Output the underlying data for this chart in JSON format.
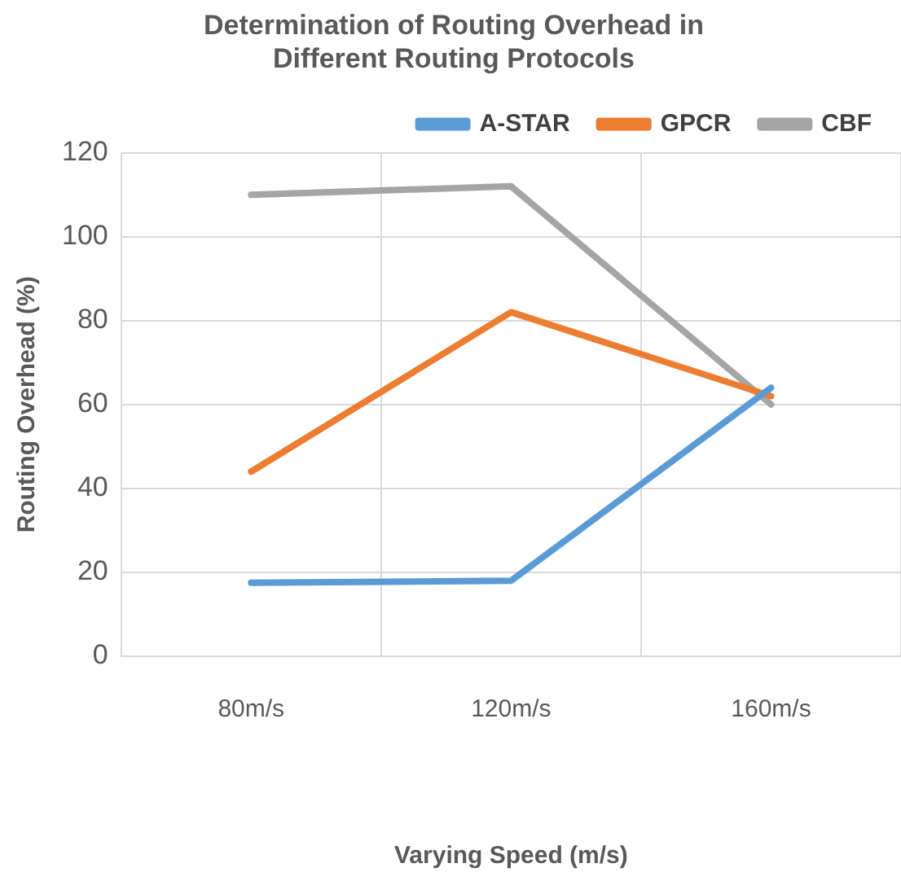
{
  "chart_data": {
    "type": "line",
    "title": "Determination of Routing Overhead in Different Routing Protocols",
    "xlabel": "Varying Speed (m/s)",
    "ylabel": "Routing Overhead (%)",
    "categories": [
      "80m/s",
      "120m/s",
      "160m/s"
    ],
    "series": [
      {
        "name": "A-STAR",
        "color": "#5b9bd5",
        "values": [
          17.5,
          18,
          64
        ]
      },
      {
        "name": "GPCR",
        "color": "#ed7d31",
        "values": [
          44,
          82,
          62
        ]
      },
      {
        "name": "CBF",
        "color": "#a5a5a5",
        "values": [
          110,
          112,
          60
        ]
      }
    ],
    "ylim": [
      0,
      120
    ],
    "yticks": [
      0,
      20,
      40,
      60,
      80,
      100,
      120
    ],
    "grid": true,
    "legend": "top",
    "marker": "none",
    "line_style": "solid"
  }
}
